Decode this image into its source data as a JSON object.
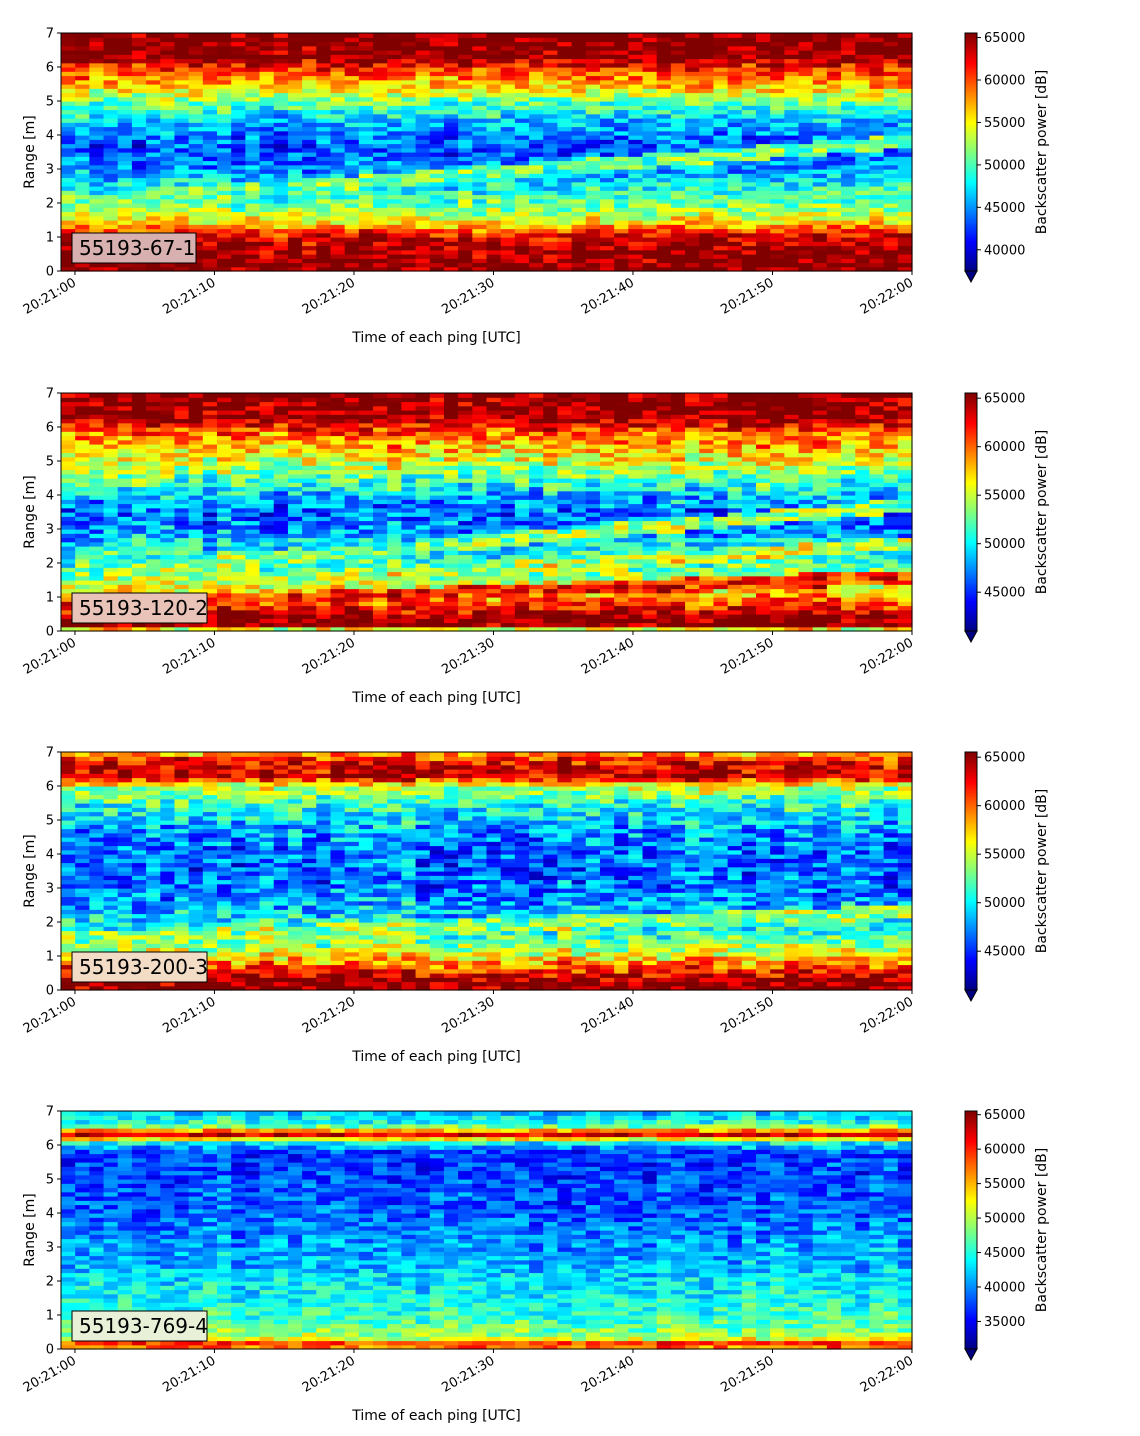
{
  "chart_data": [
    {
      "type": "heatmap",
      "annotation": "55193-67-1",
      "xlabel": "Time of each ping [UTC]",
      "ylabel": "Range [m]",
      "colorbar_label": "Backscatter power [dB]",
      "x_ticks": [
        "20:21:00",
        "20:21:10",
        "20:21:20",
        "20:21:30",
        "20:21:40",
        "20:21:50",
        "20:22:00"
      ],
      "x_range": [
        "20:20:59",
        "20:22:00"
      ],
      "ylim": [
        0,
        7
      ],
      "y_ticks": [
        0,
        1,
        2,
        3,
        4,
        5,
        6,
        7
      ],
      "clim": [
        37500,
        65535
      ],
      "colorbar_ticks": [
        40000,
        45000,
        50000,
        55000,
        60000,
        65000
      ],
      "colormap": "jet",
      "colorbar_extend": "min",
      "annotation_bg": "#d9b0b0",
      "profile": {
        "range_m": [
          0.0,
          0.2,
          0.7,
          1.1,
          1.4,
          1.8,
          2.2,
          2.8,
          3.2,
          3.7,
          4.3,
          5.0,
          5.5,
          6.0,
          6.3,
          7.0
        ],
        "power": [
          65535,
          65535,
          64500,
          62000,
          56000,
          52000,
          50000,
          46000,
          44000,
          43000,
          45500,
          51000,
          57000,
          61000,
          65535,
          65535
        ]
      },
      "bands": [
        {
          "range_start_m": 2.0,
          "range_end_m": 3.8,
          "power": 51000
        }
      ]
    },
    {
      "type": "heatmap",
      "annotation": "55193-120-2",
      "xlabel": "Time of each ping [UTC]",
      "ylabel": "Range [m]",
      "colorbar_label": "Backscatter power [dB]",
      "x_ticks": [
        "20:21:00",
        "20:21:10",
        "20:21:20",
        "20:21:30",
        "20:21:40",
        "20:21:50",
        "20:22:00"
      ],
      "x_range": [
        "20:20:59",
        "20:22:00"
      ],
      "ylim": [
        0,
        7
      ],
      "y_ticks": [
        0,
        1,
        2,
        3,
        4,
        5,
        6,
        7
      ],
      "clim": [
        41000,
        65535
      ],
      "colorbar_ticks": [
        45000,
        50000,
        55000,
        60000,
        65000
      ],
      "colormap": "jet",
      "colorbar_extend": "min",
      "annotation_bg": "#e9c3b8",
      "profile": {
        "range_m": [
          0.0,
          0.1,
          0.4,
          0.8,
          1.2,
          1.6,
          2.0,
          2.5,
          3.0,
          3.5,
          4.0,
          4.6,
          5.2,
          5.8,
          6.3,
          7.0
        ],
        "power": [
          41000,
          65535,
          65535,
          61000,
          57000,
          54000,
          52000,
          50000,
          47500,
          46500,
          49000,
          53000,
          57000,
          60000,
          65535,
          65535
        ]
      },
      "bands": [
        {
          "range_start_m": 1.6,
          "range_end_m": 3.7,
          "power": 53500
        },
        {
          "range_start_m": 1.0,
          "range_end_m": 2.6,
          "power": 55000
        },
        {
          "range_start_m": 0.7,
          "range_end_m": 1.6,
          "power": 62000
        }
      ]
    },
    {
      "type": "heatmap",
      "annotation": "55193-200-3",
      "xlabel": "Time of each ping [UTC]",
      "ylabel": "Range [m]",
      "colorbar_label": "Backscatter power [dB]",
      "x_ticks": [
        "20:21:00",
        "20:21:10",
        "20:21:20",
        "20:21:30",
        "20:21:40",
        "20:21:50",
        "20:22:00"
      ],
      "x_range": [
        "20:20:59",
        "20:22:00"
      ],
      "ylim": [
        0,
        7
      ],
      "y_ticks": [
        0,
        1,
        2,
        3,
        4,
        5,
        6,
        7
      ],
      "clim": [
        41000,
        65535
      ],
      "colorbar_ticks": [
        45000,
        50000,
        55000,
        60000,
        65000
      ],
      "colormap": "jet",
      "colorbar_extend": "min",
      "annotation_bg": "#f3dcc6",
      "profile": {
        "range_m": [
          0.0,
          0.2,
          0.5,
          0.9,
          1.3,
          1.8,
          2.3,
          3.0,
          3.6,
          4.2,
          4.8,
          5.4,
          6.0,
          6.3,
          6.8,
          7.0
        ],
        "power": [
          65535,
          65535,
          63000,
          58000,
          54000,
          51000,
          49000,
          47000,
          46500,
          47000,
          48500,
          51000,
          55000,
          64500,
          62000,
          58000
        ]
      },
      "bands": [
        {
          "range_start_m": 1.5,
          "range_end_m": 2.3,
          "power": 54000
        }
      ]
    },
    {
      "type": "heatmap",
      "annotation": "55193-769-4",
      "xlabel": "Time of each ping [UTC]",
      "ylabel": "Range [m]",
      "colorbar_label": "Backscatter power [dB]",
      "x_ticks": [
        "20:21:00",
        "20:21:10",
        "20:21:20",
        "20:21:30",
        "20:21:40",
        "20:21:50",
        "20:22:00"
      ],
      "x_range": [
        "20:20:59",
        "20:22:00"
      ],
      "ylim": [
        0,
        7
      ],
      "y_ticks": [
        0,
        1,
        2,
        3,
        4,
        5,
        6,
        7
      ],
      "clim": [
        31000,
        65535
      ],
      "colorbar_ticks": [
        35000,
        40000,
        45000,
        50000,
        55000,
        60000,
        65000
      ],
      "colormap": "jet",
      "colorbar_extend": "min",
      "annotation_bg": "#e8f1d8",
      "profile": {
        "range_m": [
          0.0,
          0.1,
          0.3,
          0.6,
          1.0,
          1.5,
          2.0,
          2.5,
          3.0,
          3.5,
          4.0,
          5.0,
          5.8,
          6.1,
          6.3,
          6.6,
          7.0
        ],
        "power": [
          45000,
          65535,
          52000,
          48000,
          46000,
          44500,
          43500,
          42000,
          41000,
          40000,
          39000,
          38000,
          37500,
          45000,
          64000,
          46000,
          42000
        ]
      },
      "bands": []
    }
  ]
}
